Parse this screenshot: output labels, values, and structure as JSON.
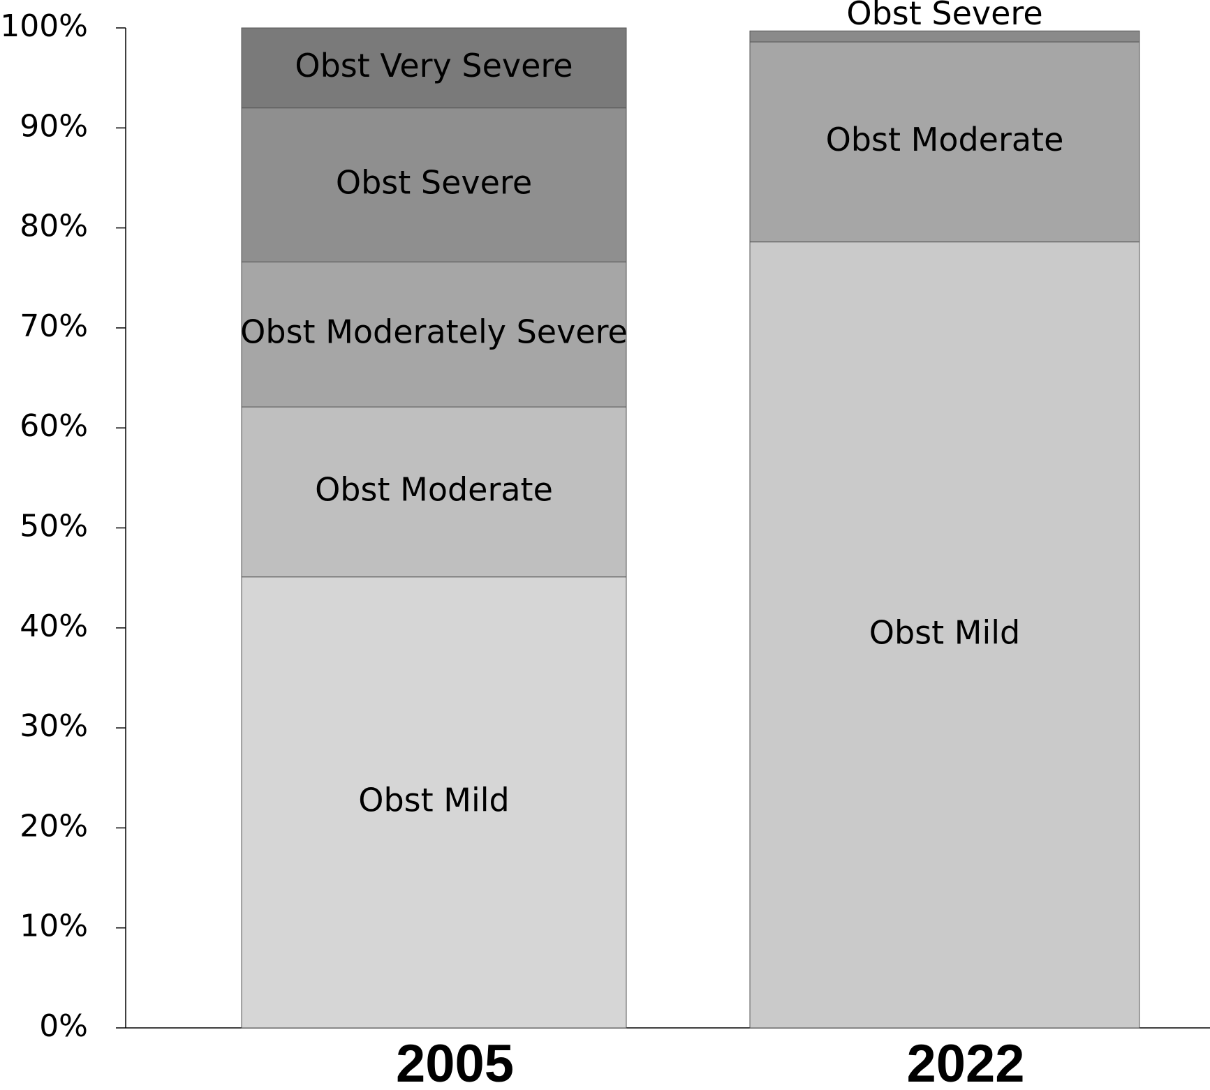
{
  "chart_data": {
    "type": "stacked-bar",
    "categories": [
      "2005",
      "2022"
    ],
    "series": [
      {
        "name": "Obst Mild",
        "colors": [
          "#d6d6d6",
          "#cacaca"
        ],
        "values": [
          45.1,
          78.6
        ]
      },
      {
        "name": "Obst Moderate",
        "colors": [
          "#bfbfbf",
          "#a6a6a6"
        ],
        "values": [
          17,
          20
        ]
      },
      {
        "name": "Obst Moderately Severe",
        "colors": [
          "#a6a6a6",
          "#a6a6a6"
        ],
        "values": [
          14.5,
          null
        ]
      },
      {
        "name": "Obst Severe",
        "colors": [
          "#8f8f8f",
          "#8a8a8a"
        ],
        "values": [
          15.4,
          1.1
        ]
      },
      {
        "name": "Obst Very Severe",
        "colors": [
          "#7a7a7a",
          "#7a7a7a"
        ],
        "values": [
          8,
          null
        ]
      }
    ],
    "ylim": [
      0,
      100
    ],
    "yticks": [
      {
        "value": 0,
        "label": "0%"
      },
      {
        "value": 10,
        "label": "10%"
      },
      {
        "value": 20,
        "label": "20%"
      },
      {
        "value": 30,
        "label": "30%"
      },
      {
        "value": 40,
        "label": "40%"
      },
      {
        "value": 50,
        "label": "50%"
      },
      {
        "value": 60,
        "label": "60%"
      },
      {
        "value": 70,
        "label": "70%"
      },
      {
        "value": 80,
        "label": "80%"
      },
      {
        "value": 90,
        "label": "90%"
      },
      {
        "value": 100,
        "label": "100%"
      }
    ]
  }
}
